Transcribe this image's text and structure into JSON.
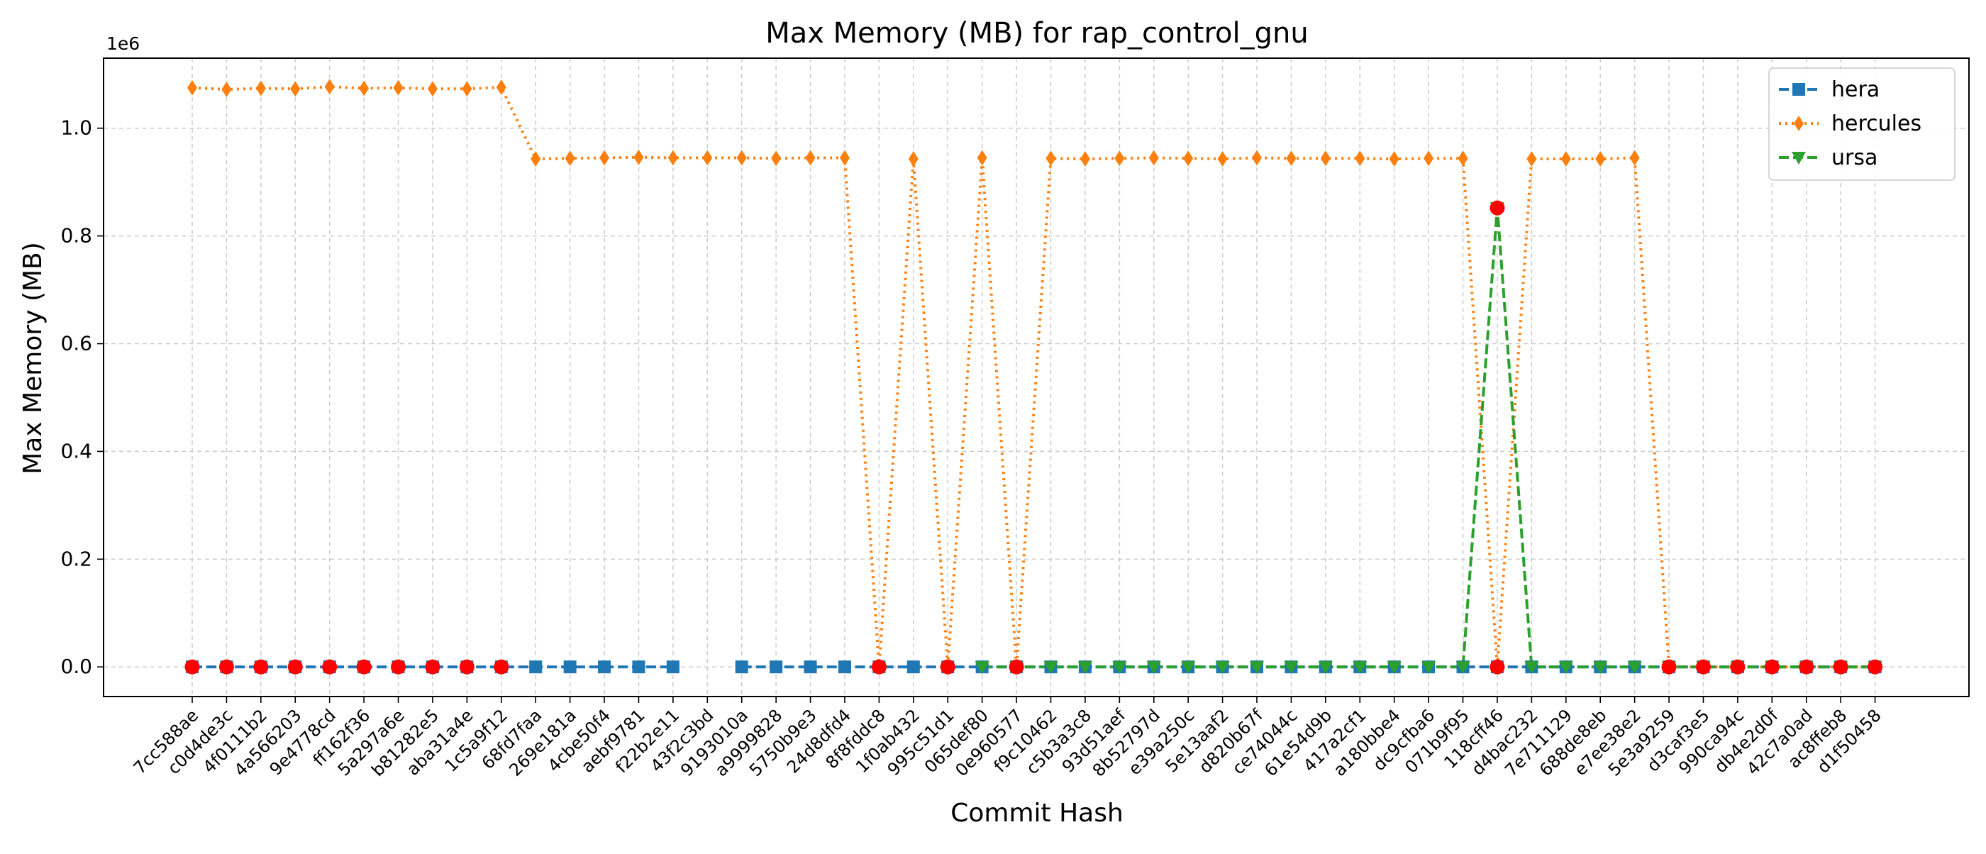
{
  "chart_data": {
    "type": "line",
    "title": "Max Memory (MB) for rap_control_gnu",
    "xlabel": "Commit Hash",
    "ylabel": "Max Memory (MB)",
    "y_scale_label": "1e6",
    "ylim": [
      -0.055,
      1.13
    ],
    "yticks": [
      0.0,
      0.2,
      0.4,
      0.6,
      0.8,
      1.0
    ],
    "ytick_labels": [
      "0.0",
      "0.2",
      "0.4",
      "0.6",
      "0.8",
      "1.0"
    ],
    "grid": true,
    "legend_position": "top-right",
    "categories": [
      "7cc588ae",
      "c0d4de3c",
      "4f0111b2",
      "4a566203",
      "9e4778cd",
      "ff162f36",
      "5a297a6e",
      "b81282e5",
      "aba31a4e",
      "1c5a9f12",
      "68fd7faa",
      "269e181a",
      "4cbe50f4",
      "aebf9781",
      "f22b2e11",
      "43f2c3bd",
      "9193010a",
      "a9999828",
      "5750b9e3",
      "24d8dfd4",
      "8f8fddc8",
      "1f0ab432",
      "995c51d1",
      "065def80",
      "0e960577",
      "f9c10462",
      "c5b3a3c8",
      "93d51aef",
      "8b52797d",
      "e39a250c",
      "5e13aaf2",
      "d820b67f",
      "ce74044c",
      "61e54d9b",
      "417a2cf1",
      "a180bbe4",
      "dc9cfba6",
      "071b9f95",
      "118cff46",
      "d4bac232",
      "7e711129",
      "688de8eb",
      "e7ee38e2",
      "5e3a9259",
      "d3caf3e5",
      "990ca94c",
      "db4e2d0f",
      "42c7a0ad",
      "ac8ffeb8",
      "d1f50458"
    ],
    "series": [
      {
        "name": "hera",
        "color": "#1f77b4",
        "linestyle": "dashed",
        "marker": "square",
        "values": [
          0,
          0,
          0,
          0,
          0,
          0,
          0,
          0,
          0,
          0,
          0,
          0,
          0,
          0,
          0,
          null,
          0,
          0,
          0,
          0,
          0,
          0,
          0,
          0,
          0,
          0,
          0,
          0,
          0,
          0,
          0,
          0,
          0,
          0,
          0,
          0,
          0,
          0,
          0,
          0,
          0,
          0,
          0,
          0,
          0,
          0,
          0,
          0,
          0,
          0
        ]
      },
      {
        "name": "hercules",
        "color": "#ff7f0e",
        "linestyle": "dotted",
        "marker": "diamond",
        "values": [
          1.075,
          1.072,
          1.074,
          1.073,
          1.077,
          1.074,
          1.075,
          1.073,
          1.073,
          1.076,
          0.943,
          0.944,
          0.945,
          0.946,
          0.945,
          0.945,
          0.945,
          0.944,
          0.945,
          0.945,
          0,
          0.943,
          0,
          0.945,
          0,
          0.944,
          0.943,
          0.944,
          0.945,
          0.944,
          0.943,
          0.945,
          0.944,
          0.944,
          0.944,
          0.943,
          0.944,
          0.944,
          0,
          0.943,
          0.943,
          0.943,
          0.945,
          0,
          0,
          0,
          0,
          0,
          0,
          0
        ]
      },
      {
        "name": "ursa",
        "color": "#2ca02c",
        "linestyle": "dashed",
        "marker": "triangle-down",
        "values": [
          null,
          null,
          null,
          null,
          null,
          null,
          null,
          null,
          null,
          null,
          null,
          null,
          null,
          null,
          null,
          null,
          null,
          null,
          null,
          null,
          null,
          null,
          null,
          0,
          0,
          0,
          0,
          0,
          0,
          0,
          0,
          0,
          0,
          0,
          0,
          0,
          0,
          0,
          0.852,
          0,
          0,
          0,
          0,
          0,
          0,
          0,
          0,
          0,
          0,
          0
        ]
      }
    ],
    "highlight_points": {
      "color": "#ff0000",
      "description_indices": [
        0,
        1,
        2,
        3,
        4,
        5,
        6,
        7,
        8,
        9,
        20,
        22,
        24,
        38,
        43,
        44,
        45,
        46,
        47,
        48,
        49
      ],
      "points": [
        {
          "i": 0,
          "y": 0
        },
        {
          "i": 1,
          "y": 0
        },
        {
          "i": 2,
          "y": 0
        },
        {
          "i": 3,
          "y": 0
        },
        {
          "i": 4,
          "y": 0
        },
        {
          "i": 5,
          "y": 0
        },
        {
          "i": 6,
          "y": 0
        },
        {
          "i": 7,
          "y": 0
        },
        {
          "i": 8,
          "y": 0
        },
        {
          "i": 9,
          "y": 0
        },
        {
          "i": 20,
          "y": 0
        },
        {
          "i": 22,
          "y": 0
        },
        {
          "i": 24,
          "y": 0
        },
        {
          "i": 38,
          "y": 0.852
        },
        {
          "i": 38,
          "y": 0
        },
        {
          "i": 43,
          "y": 0
        },
        {
          "i": 44,
          "y": 0
        },
        {
          "i": 45,
          "y": 0
        },
        {
          "i": 46,
          "y": 0
        },
        {
          "i": 47,
          "y": 0
        },
        {
          "i": 48,
          "y": 0
        },
        {
          "i": 49,
          "y": 0
        }
      ]
    }
  }
}
